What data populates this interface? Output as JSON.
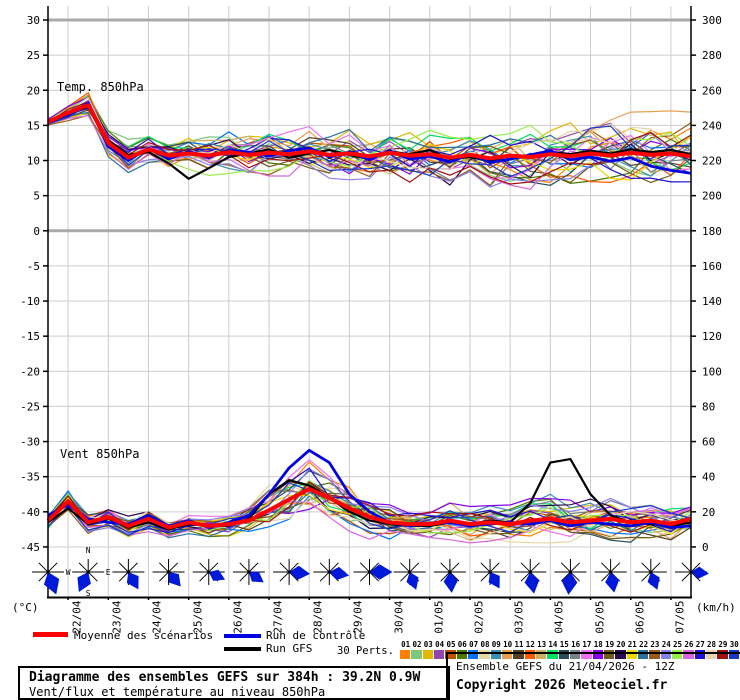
{
  "colors": {
    "mean": "#FF0000",
    "control": "#0000E0",
    "gfs": "#000000",
    "grid": "#CCCCCC",
    "grid_major": "#AAAAAA",
    "axis": "#000000",
    "rose_fill": "#0018D8",
    "background": "#FFFFFF"
  },
  "panels": {
    "temp_label": "Temp. 850hPa",
    "wind_label": "Vent 850hPa"
  },
  "axes": {
    "left_unit": "(°C)",
    "right_unit": "(km/h)",
    "left_ticks": [
      30,
      25,
      20,
      15,
      10,
      5,
      0,
      -5,
      -10,
      -15,
      -20,
      -25,
      -30,
      -35,
      -40,
      -45
    ],
    "right_ticks": [
      300,
      280,
      260,
      240,
      220,
      200,
      180,
      160,
      140,
      120,
      100,
      80,
      60,
      40,
      20,
      0
    ],
    "dates": [
      "22/04",
      "23/04",
      "24/04",
      "25/04",
      "26/04",
      "27/04",
      "28/04",
      "29/04",
      "30/04",
      "01/05",
      "02/05",
      "03/05",
      "04/05",
      "05/05",
      "06/05",
      "07/05"
    ]
  },
  "legend": {
    "mean": "Moyenne des scénarios",
    "control": "Run de contrôle",
    "gfs": "Run GFS",
    "perts": "30 Perts.",
    "pert_numbers": [
      "01",
      "02",
      "03",
      "04",
      "05",
      "06",
      "07",
      "08",
      "09",
      "10",
      "11",
      "12",
      "13",
      "14",
      "15",
      "16",
      "17",
      "18",
      "19",
      "20",
      "21",
      "22",
      "23",
      "24",
      "25",
      "26",
      "27",
      "28",
      "29",
      "30"
    ],
    "pert_colors": [
      "#FF8000",
      "#7EC87E",
      "#E0B800",
      "#9048B0",
      "#C05000",
      "#4E7800",
      "#0070FF",
      "#E6D6A0",
      "#3890B8",
      "#E8A050",
      "#504028",
      "#FF5800",
      "#CCB060",
      "#00E060",
      "#2A4A58",
      "#788088",
      "#EE70EE",
      "#8800EE",
      "#705C18",
      "#280850",
      "#EED800",
      "#2870A0",
      "#9A5A1A",
      "#8880EE",
      "#98EE48",
      "#D868D8",
      "#2010D0",
      "#E6D6B0",
      "#A01010",
      "#1838C8"
    ]
  },
  "footer": {
    "title": "Diagramme des ensembles GEFS sur 384h : 39.2N 0.9W",
    "subtitle": "Vent/flux et température au niveau 850hPa",
    "run_info": "Ensemble GEFS du 21/04/2026 - 12Z",
    "copyright": "Copyright 2026 Meteociel.fr"
  },
  "chart_data": [
    {
      "type": "line",
      "title": "Temp. 850hPa",
      "ylabel": "(°C)",
      "ylim": [
        -45,
        30
      ],
      "grid": true,
      "x_hours": [
        0,
        12,
        24,
        36,
        48,
        60,
        72,
        84,
        96,
        108,
        120,
        132,
        144,
        156,
        168,
        180,
        192,
        204,
        216,
        228,
        240,
        252,
        264,
        276,
        288,
        300,
        312,
        324,
        336,
        348,
        360,
        372,
        384
      ],
      "series": [
        {
          "name": "Moyenne des scénarios",
          "values": [
            15.5,
            16.8,
            17.9,
            12.5,
            10.4,
            11.6,
            10.7,
            11.0,
            10.7,
            11.2,
            10.8,
            11.1,
            10.9,
            11.3,
            10.8,
            11.0,
            10.6,
            11.1,
            10.7,
            10.9,
            10.4,
            10.8,
            10.3,
            10.7,
            10.5,
            10.9,
            10.6,
            11.0,
            10.7,
            11.1,
            10.8,
            11.0,
            10.6
          ]
        },
        {
          "name": "Run de contrôle",
          "values": [
            15.5,
            16.5,
            18.2,
            12.0,
            10.0,
            11.8,
            10.2,
            11.3,
            10.4,
            11.5,
            11.2,
            10.6,
            11.4,
            11.8,
            10.5,
            11.2,
            10.1,
            11.4,
            10.2,
            10.6,
            9.8,
            10.9,
            9.7,
            10.2,
            10.8,
            11.4,
            10.1,
            10.5,
            9.9,
            10.4,
            9.2,
            8.6,
            8.2
          ]
        },
        {
          "name": "Run GFS",
          "values": [
            15.6,
            16.9,
            17.6,
            12.8,
            10.8,
            11.2,
            9.6,
            7.4,
            8.9,
            10.5,
            11.0,
            11.6,
            10.4,
            11.0,
            11.5,
            10.8,
            10.2,
            11.3,
            10.9,
            11.5,
            10.2,
            10.5,
            9.9,
            10.8,
            10.4,
            11.2,
            10.9,
            11.4,
            11.0,
            11.6,
            11.2,
            11.5,
            10.9
          ]
        }
      ],
      "ensemble_spread": [
        0.6,
        1.0,
        1.4,
        1.8,
        2.0,
        2.0,
        2.2,
        2.4,
        2.4,
        2.6,
        2.6,
        2.8,
        2.8,
        3.0,
        3.0,
        3.2,
        3.2,
        3.4,
        3.4,
        3.5,
        3.5,
        3.6,
        3.7,
        3.8,
        3.9,
        4.0,
        4.0,
        4.1,
        4.2,
        4.3,
        4.4,
        4.4,
        4.5
      ],
      "n_members": 30
    },
    {
      "type": "line",
      "title": "Vent 850hPa",
      "ylabel": "(km/h)",
      "ylim": [
        0,
        300
      ],
      "grid": true,
      "x_hours": [
        0,
        12,
        24,
        36,
        48,
        60,
        72,
        84,
        96,
        108,
        120,
        132,
        144,
        156,
        168,
        180,
        192,
        204,
        216,
        228,
        240,
        252,
        264,
        276,
        288,
        300,
        312,
        324,
        336,
        348,
        360,
        372,
        384
      ],
      "series": [
        {
          "name": "Moyenne des scénarios",
          "values": [
            15,
            26,
            14,
            17,
            12,
            16,
            11,
            14,
            12,
            13,
            15,
            21,
            27,
            33,
            28,
            22,
            17,
            14,
            13,
            13,
            15,
            13,
            14,
            13,
            15,
            16,
            14,
            15,
            16,
            14,
            15,
            13,
            16
          ]
        },
        {
          "name": "Run de contrôle",
          "values": [
            18,
            24,
            16,
            14,
            13,
            18,
            12,
            15,
            11,
            14,
            18,
            30,
            45,
            55,
            48,
            30,
            20,
            14,
            12,
            13,
            14,
            12,
            13,
            14,
            13,
            15,
            12,
            14,
            13,
            12,
            14,
            11,
            12
          ]
        },
        {
          "name": "Run GFS",
          "values": [
            14,
            22,
            13,
            16,
            11,
            14,
            10,
            13,
            12,
            12,
            16,
            30,
            38,
            35,
            28,
            20,
            15,
            13,
            12,
            12,
            14,
            13,
            15,
            14,
            25,
            48,
            50,
            30,
            18,
            14,
            13,
            12,
            14
          ]
        }
      ],
      "ensemble_spread": [
        5,
        7,
        6,
        6,
        5,
        6,
        5,
        5,
        5,
        6,
        8,
        11,
        13,
        14,
        13,
        11,
        9,
        8,
        7,
        7,
        8,
        8,
        8,
        8,
        9,
        10,
        9,
        9,
        10,
        9,
        9,
        9,
        8
      ],
      "n_members": 30
    }
  ],
  "wind_roses": {
    "compass": [
      "N",
      "E",
      "S",
      "W"
    ],
    "roses": [
      {
        "dir": 160,
        "r": 24
      },
      {
        "dir": 205,
        "r": 22
      },
      {
        "dir": 150,
        "r": 20
      },
      {
        "dir": 140,
        "r": 19
      },
      {
        "dir": 115,
        "r": 18
      },
      {
        "dir": 125,
        "r": 18
      },
      {
        "dir": 95,
        "r": 21
      },
      {
        "dir": 100,
        "r": 20
      },
      {
        "dir": 90,
        "r": 23
      },
      {
        "dir": 160,
        "r": 19
      },
      {
        "dir": 175,
        "r": 21
      },
      {
        "dir": 150,
        "r": 19
      },
      {
        "dir": 170,
        "r": 22
      },
      {
        "dir": 185,
        "r": 23
      },
      {
        "dir": 170,
        "r": 21
      },
      {
        "dir": 160,
        "r": 19
      },
      {
        "dir": 95,
        "r": 18
      }
    ]
  }
}
